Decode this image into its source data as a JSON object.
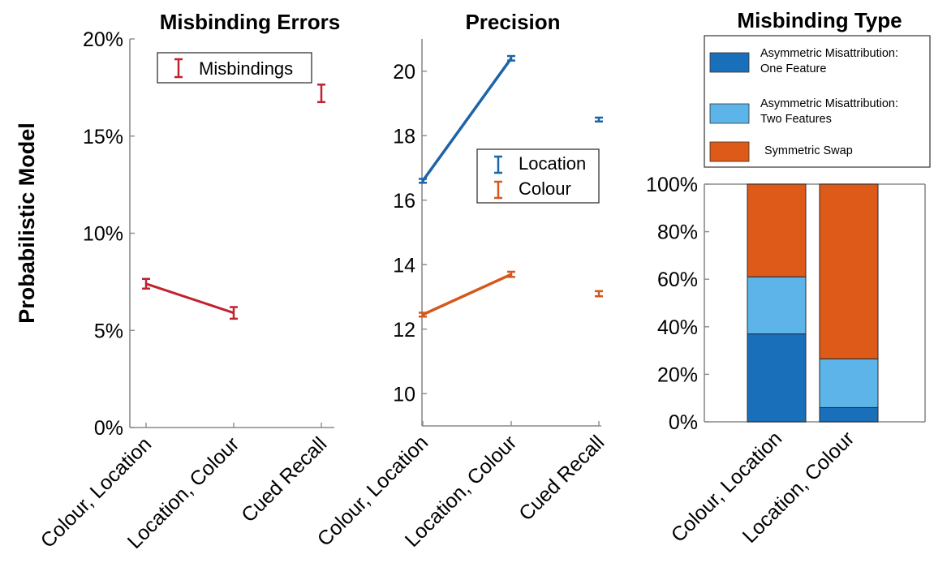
{
  "y_axis_label": "Probabilistic Model",
  "colors": {
    "misbindings": "#c0222e",
    "location": "#1c64a8",
    "colour": "#d4581c",
    "asym_one": "#1a6fba",
    "asym_two": "#5cb4e8",
    "sym_swap": "#dd5a18"
  },
  "chart_data": [
    {
      "type": "line",
      "title": "Misbinding Errors",
      "categories": [
        "Colour, Location",
        "Location, Colour",
        "Cued Recall"
      ],
      "ylim": [
        0,
        20
      ],
      "yticks": [
        "0%",
        "5%",
        "10%",
        "15%",
        "20%"
      ],
      "legend": [
        "Misbindings"
      ],
      "legend_placement": "top-left",
      "series": [
        {
          "name": "Misbindings",
          "values": [
            7.4,
            5.9,
            17.2
          ],
          "error": [
            0.25,
            0.3,
            0.45
          ],
          "connected": [
            true,
            true,
            false
          ]
        }
      ]
    },
    {
      "type": "line",
      "title": "Precision",
      "categories": [
        "Colour, Location",
        "Location, Colour",
        "Cued Recall"
      ],
      "ylim": [
        9,
        21
      ],
      "yticks": [
        "10",
        "12",
        "14",
        "16",
        "18",
        "20"
      ],
      "legend": [
        "Location",
        "Colour"
      ],
      "legend_placement": "center-right",
      "series": [
        {
          "name": "Location",
          "values": [
            16.6,
            20.4,
            18.5
          ],
          "error": [
            0.06,
            0.07,
            0.06
          ],
          "connected": [
            true,
            true,
            false
          ]
        },
        {
          "name": "Colour",
          "values": [
            12.45,
            13.7,
            13.1
          ],
          "error": [
            0.06,
            0.08,
            0.08
          ],
          "connected": [
            true,
            true,
            false
          ]
        }
      ]
    },
    {
      "type": "bar",
      "stacked": true,
      "title": "Misbinding Type",
      "categories": [
        "Colour, Location",
        "Location, Colour"
      ],
      "ylim": [
        0,
        100
      ],
      "yticks": [
        "0%",
        "20%",
        "40%",
        "60%",
        "80%",
        "100%"
      ],
      "legend": [
        "Asymmetric Misattribution: One Feature",
        "Asymmetric Misattribution: Two Features",
        "Symmetric Swap"
      ],
      "legend_placement": "top",
      "series": [
        {
          "name": "Asymmetric Misattribution: One Feature",
          "values": [
            37,
            6
          ]
        },
        {
          "name": "Asymmetric Misattribution: Two Features",
          "values": [
            24,
            20.5
          ]
        },
        {
          "name": "Symmetric Swap",
          "values": [
            39,
            73.5
          ]
        }
      ]
    }
  ]
}
